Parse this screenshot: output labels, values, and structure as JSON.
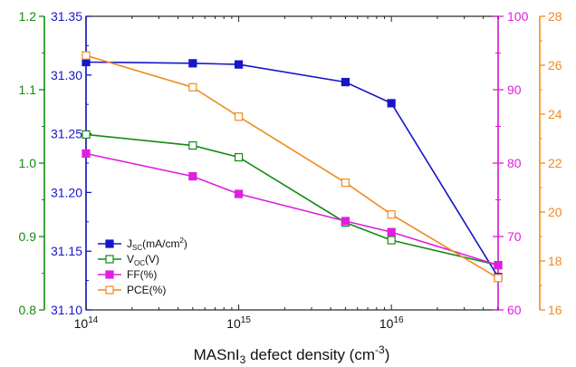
{
  "chart_data": {
    "type": "line",
    "xlabel_parts": [
      "MASnI",
      "3",
      " defect density (cm",
      "-3",
      ")"
    ],
    "x_scale": "log",
    "x": [
      100000000000000.0,
      500000000000000.0,
      1000000000000000.0,
      5000000000000000.0,
      1e+16,
      5e+16
    ],
    "x_ticks": [
      {
        "value": 100000000000000.0,
        "base": "10",
        "exp": "14"
      },
      {
        "value": 1000000000000000.0,
        "base": "10",
        "exp": "15"
      },
      {
        "value": 1e+16,
        "base": "10",
        "exp": "16"
      }
    ],
    "axes": [
      {
        "id": "voc",
        "color": "#138a13",
        "range": [
          0.8,
          1.2
        ],
        "ticks": [
          "0.8",
          "0.9",
          "1.0",
          "1.1",
          "1.2"
        ],
        "tick_values": [
          0.8,
          0.9,
          1.0,
          1.1,
          1.2
        ]
      },
      {
        "id": "jsc",
        "color": "#1616c8",
        "range": [
          31.1,
          31.35
        ],
        "ticks": [
          "31.10",
          "31.15",
          "31.20",
          "31.25",
          "31.30",
          "31.35"
        ],
        "tick_values": [
          31.1,
          31.15,
          31.2,
          31.25,
          31.3,
          31.35
        ]
      },
      {
        "id": "ff",
        "color": "#e01ee0",
        "range": [
          60,
          100
        ],
        "ticks": [
          "60",
          "70",
          "80",
          "90",
          "100"
        ],
        "tick_values": [
          60,
          70,
          80,
          90,
          100
        ]
      },
      {
        "id": "pce",
        "color": "#f08a20",
        "range": [
          16,
          28
        ],
        "ticks": [
          "16",
          "18",
          "20",
          "22",
          "24",
          "26",
          "28"
        ],
        "tick_values": [
          16,
          18,
          20,
          22,
          24,
          26,
          28
        ]
      }
    ],
    "series": [
      {
        "axis": "jsc",
        "name_parts": [
          "J",
          "SC",
          "(mA/cm",
          "2",
          ")"
        ],
        "color": "#1616c8",
        "marker": "filled",
        "values": [
          31.311,
          31.31,
          31.309,
          31.294,
          31.276,
          31.128
        ]
      },
      {
        "axis": "voc",
        "name_parts": [
          "V",
          "OC",
          "(V)",
          "",
          ""
        ],
        "color": "#138a13",
        "marker": "open",
        "values": [
          1.039,
          1.024,
          1.008,
          0.919,
          0.895,
          0.861
        ]
      },
      {
        "axis": "ff",
        "name_parts": [
          "FF(%)",
          "",
          "",
          "",
          ""
        ],
        "color": "#e01ee0",
        "marker": "filled",
        "values": [
          81.3,
          78.2,
          75.8,
          72.1,
          70.6,
          66.1
        ]
      },
      {
        "axis": "pce",
        "name_parts": [
          "PCE(%)",
          "",
          "",
          "",
          ""
        ],
        "color": "#f08a20",
        "marker": "open",
        "values": [
          26.4,
          25.1,
          23.9,
          21.2,
          19.9,
          17.3
        ]
      }
    ],
    "legend_position": "bottom-left",
    "grid": false
  }
}
